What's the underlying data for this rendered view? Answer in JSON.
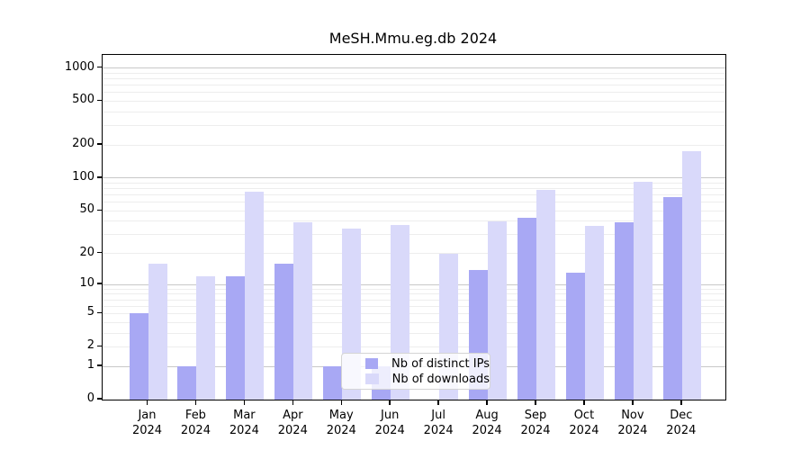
{
  "chart_data": {
    "type": "bar",
    "title": "MeSH.Mmu.eg.db 2024",
    "categories": [
      "Jan",
      "Feb",
      "Mar",
      "Apr",
      "May",
      "Jun",
      "Jul",
      "Aug",
      "Sep",
      "Oct",
      "Nov",
      "Dec"
    ],
    "category_year": "2024",
    "series": [
      {
        "name": "Nb of distinct IPs",
        "color": "#a8a8f4",
        "values": [
          5,
          1,
          12,
          16,
          1,
          1,
          0,
          14,
          43,
          13,
          39,
          67
        ]
      },
      {
        "name": "Nb of downloads",
        "color": "#d9d9fa",
        "values": [
          16,
          12,
          75,
          39,
          34,
          37,
          20,
          40,
          78,
          36,
          92,
          175
        ]
      }
    ],
    "y_scale": "log10(1+v)",
    "y_ticks": [
      1000,
      500,
      200,
      100,
      50,
      20,
      10,
      5,
      2,
      1,
      0
    ],
    "ylim": [
      0,
      1300
    ],
    "grid": true,
    "legend_position": "bottom-center-inside",
    "colors": {
      "major_grid": "#c8c8c8",
      "minor_grid": "#ededed",
      "axis": "#000000"
    }
  }
}
